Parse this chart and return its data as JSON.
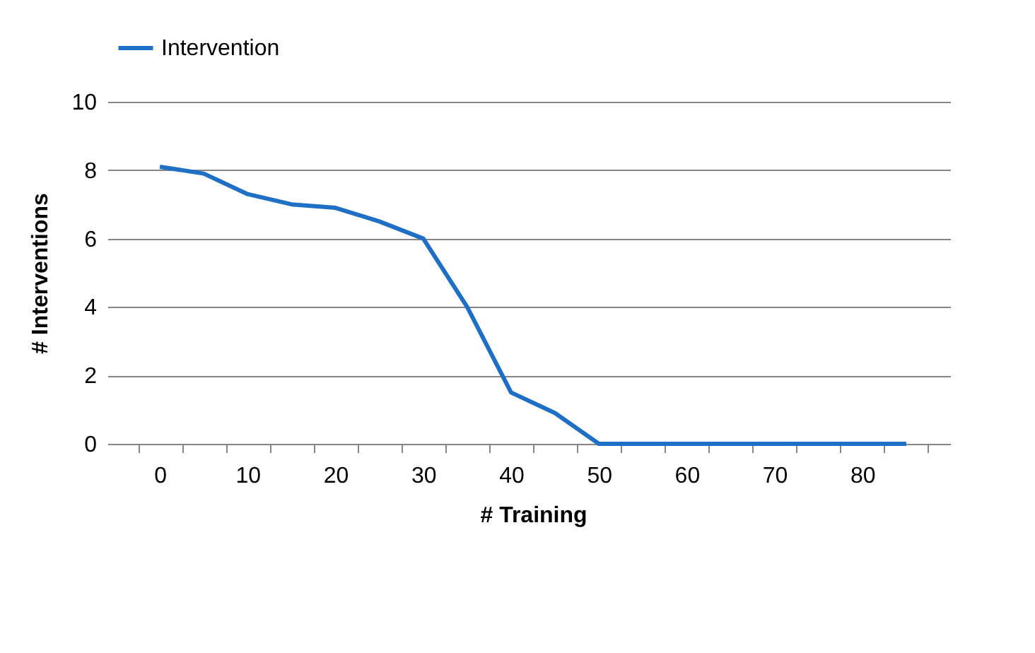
{
  "chart_data": {
    "type": "line",
    "xlabel": "# Training",
    "ylabel": "# Interventions",
    "categories": [
      "0",
      null,
      "10",
      null,
      "20",
      null,
      "30",
      null,
      "40",
      null,
      "50",
      null,
      "60",
      null,
      "70",
      null,
      "80",
      null
    ],
    "series": [
      {
        "name": "Intervention",
        "color": "#1f6fc5",
        "values": [
          8.1,
          7.9,
          7.3,
          7.0,
          6.9,
          6.5,
          6.0,
          4.0,
          1.5,
          0.9,
          0,
          0,
          0,
          0,
          0,
          0,
          0,
          0
        ]
      }
    ],
    "ylim": [
      0,
      10
    ],
    "yticks": [
      0,
      2,
      4,
      6,
      8,
      10
    ],
    "grid": "y",
    "legend": "top",
    "marker": "none",
    "line_style": "solid"
  }
}
